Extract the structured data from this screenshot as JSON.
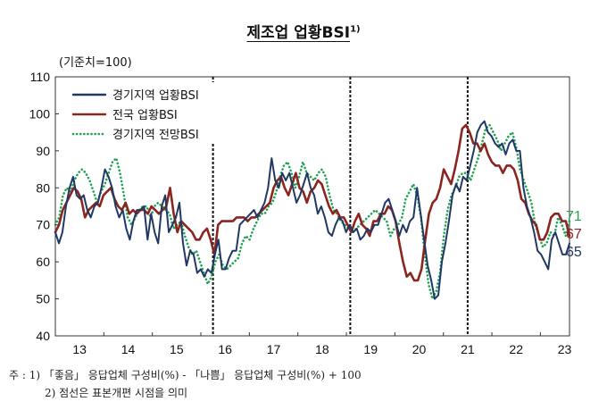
{
  "title": {
    "text": "제조업 업황BSI",
    "sup": "1)"
  },
  "unit_label": "(기준치=100)",
  "notes": {
    "line1": "주 : 1) 「좋음」 응답업체 구성비(%) - 「나쁨」 응답업체 구성비(%) + 100",
    "line2": "2) 점선은 표본개편 시점을 의미"
  },
  "chart_data": {
    "type": "line",
    "ylim": [
      40,
      110
    ],
    "yticks": [
      40,
      50,
      60,
      70,
      80,
      90,
      100,
      110
    ],
    "x_start": 13.0,
    "x_end": 23.6,
    "xticks": [
      "13",
      "14",
      "15",
      "16",
      "17",
      "18",
      "19",
      "20",
      "21",
      "22",
      "23"
    ],
    "grid": false,
    "legend_position": "top-left",
    "sample_change_points": [
      16.25,
      19.08,
      21.5
    ],
    "end_labels": [
      {
        "text": "71",
        "value": 71,
        "series": "경기지역 전망BSI"
      },
      {
        "text": "67",
        "value": 67,
        "series": "전국 업황BSI"
      },
      {
        "text": "65",
        "value": 65,
        "series": "경기지역 업황BSI"
      }
    ],
    "series": [
      {
        "name": "경기지역 업황BSI",
        "color": "#1f3864",
        "style": "solid",
        "values": [
          68,
          65,
          68,
          75,
          80,
          83,
          78,
          77,
          78,
          74,
          72,
          75,
          76,
          80,
          85,
          83,
          80,
          75,
          72,
          74,
          69,
          66,
          71,
          74,
          74,
          75,
          66,
          73,
          68,
          65,
          75,
          78,
          68,
          70,
          72,
          76,
          65,
          59,
          63,
          62,
          57,
          58,
          56,
          58,
          57,
          62,
          66,
          58,
          58,
          61,
          63,
          63,
          70,
          71,
          72,
          73,
          74,
          72,
          74,
          76,
          80,
          88,
          82,
          80,
          84,
          82,
          84,
          80,
          76,
          78,
          81,
          84,
          80,
          78,
          73,
          75,
          72,
          68,
          67,
          70,
          72,
          71,
          68,
          70,
          68,
          69,
          66,
          67,
          69,
          68,
          70,
          70,
          73,
          76,
          77,
          74,
          71,
          67,
          70,
          68,
          71,
          72,
          80,
          73,
          66,
          59,
          55,
          50,
          51,
          60,
          65,
          71,
          78,
          81,
          79,
          83,
          82,
          86,
          90,
          95,
          97,
          98,
          95,
          94,
          92,
          91,
          92,
          89,
          92,
          93,
          90,
          90,
          80,
          75,
          72,
          68,
          63,
          62,
          60,
          58,
          66,
          68,
          65,
          62,
          62,
          65
        ]
      },
      {
        "name": "전국 업황BSI",
        "color": "#8b2520",
        "style": "solid",
        "values": [
          68,
          70,
          74,
          76,
          78,
          80,
          79,
          77,
          72,
          74,
          75,
          76,
          75,
          78,
          79,
          80,
          77,
          75,
          74,
          76,
          73,
          74,
          73,
          74,
          74,
          73,
          75,
          74,
          73,
          74,
          75,
          80,
          73,
          68,
          71,
          70,
          69,
          68,
          66,
          66,
          68,
          69,
          66,
          62,
          70,
          71,
          71,
          71,
          71,
          72,
          72,
          72,
          71,
          72,
          72,
          73,
          74,
          75,
          76,
          80,
          82,
          83,
          80,
          78,
          81,
          84,
          80,
          79,
          76,
          79,
          80,
          82,
          81,
          78,
          75,
          73,
          74,
          72,
          72,
          70,
          68,
          71,
          73,
          70,
          69,
          67,
          71,
          71,
          73,
          73,
          75,
          74,
          71,
          65,
          60,
          56,
          57,
          55,
          55,
          58,
          66,
          73,
          76,
          77,
          80,
          85,
          83,
          81,
          85,
          90,
          96,
          97,
          95,
          92,
          92,
          90,
          92,
          89,
          87,
          86,
          86,
          84,
          86,
          86,
          85,
          82,
          77,
          76,
          73,
          71,
          70,
          66,
          66,
          68,
          72,
          73,
          73,
          71,
          71,
          67
        ]
      },
      {
        "name": "경기지역 전망BSI",
        "color": "#23a254",
        "style": "dotted",
        "values": [
          70,
          72,
          78,
          80,
          79,
          82,
          84,
          85,
          84,
          82,
          79,
          76,
          79,
          81,
          84,
          87,
          88,
          84,
          78,
          72,
          70,
          72,
          74,
          75,
          75,
          72,
          75,
          76,
          75,
          74,
          73,
          69,
          70,
          71,
          67,
          64,
          62,
          63,
          60,
          57,
          54,
          56,
          60,
          62,
          59,
          58,
          59,
          60,
          61,
          65,
          67,
          66,
          69,
          71,
          73,
          73,
          75,
          76,
          79,
          83,
          86,
          87,
          84,
          80,
          83,
          87,
          84,
          83,
          82,
          84,
          85,
          83,
          78,
          74,
          73,
          71,
          70,
          69,
          68,
          69,
          70,
          71,
          72,
          73,
          74,
          73,
          72,
          71,
          67,
          69,
          70,
          72,
          77,
          79,
          81,
          78,
          72,
          62,
          54,
          50,
          52,
          57,
          67,
          74,
          78,
          80,
          83,
          84,
          84,
          82,
          85,
          88,
          92,
          96,
          97,
          95,
          93,
          90,
          92,
          94,
          95,
          91,
          85,
          82,
          79,
          76,
          70,
          67,
          64,
          65,
          68,
          67,
          72,
          70,
          67,
          71
        ]
      }
    ]
  }
}
